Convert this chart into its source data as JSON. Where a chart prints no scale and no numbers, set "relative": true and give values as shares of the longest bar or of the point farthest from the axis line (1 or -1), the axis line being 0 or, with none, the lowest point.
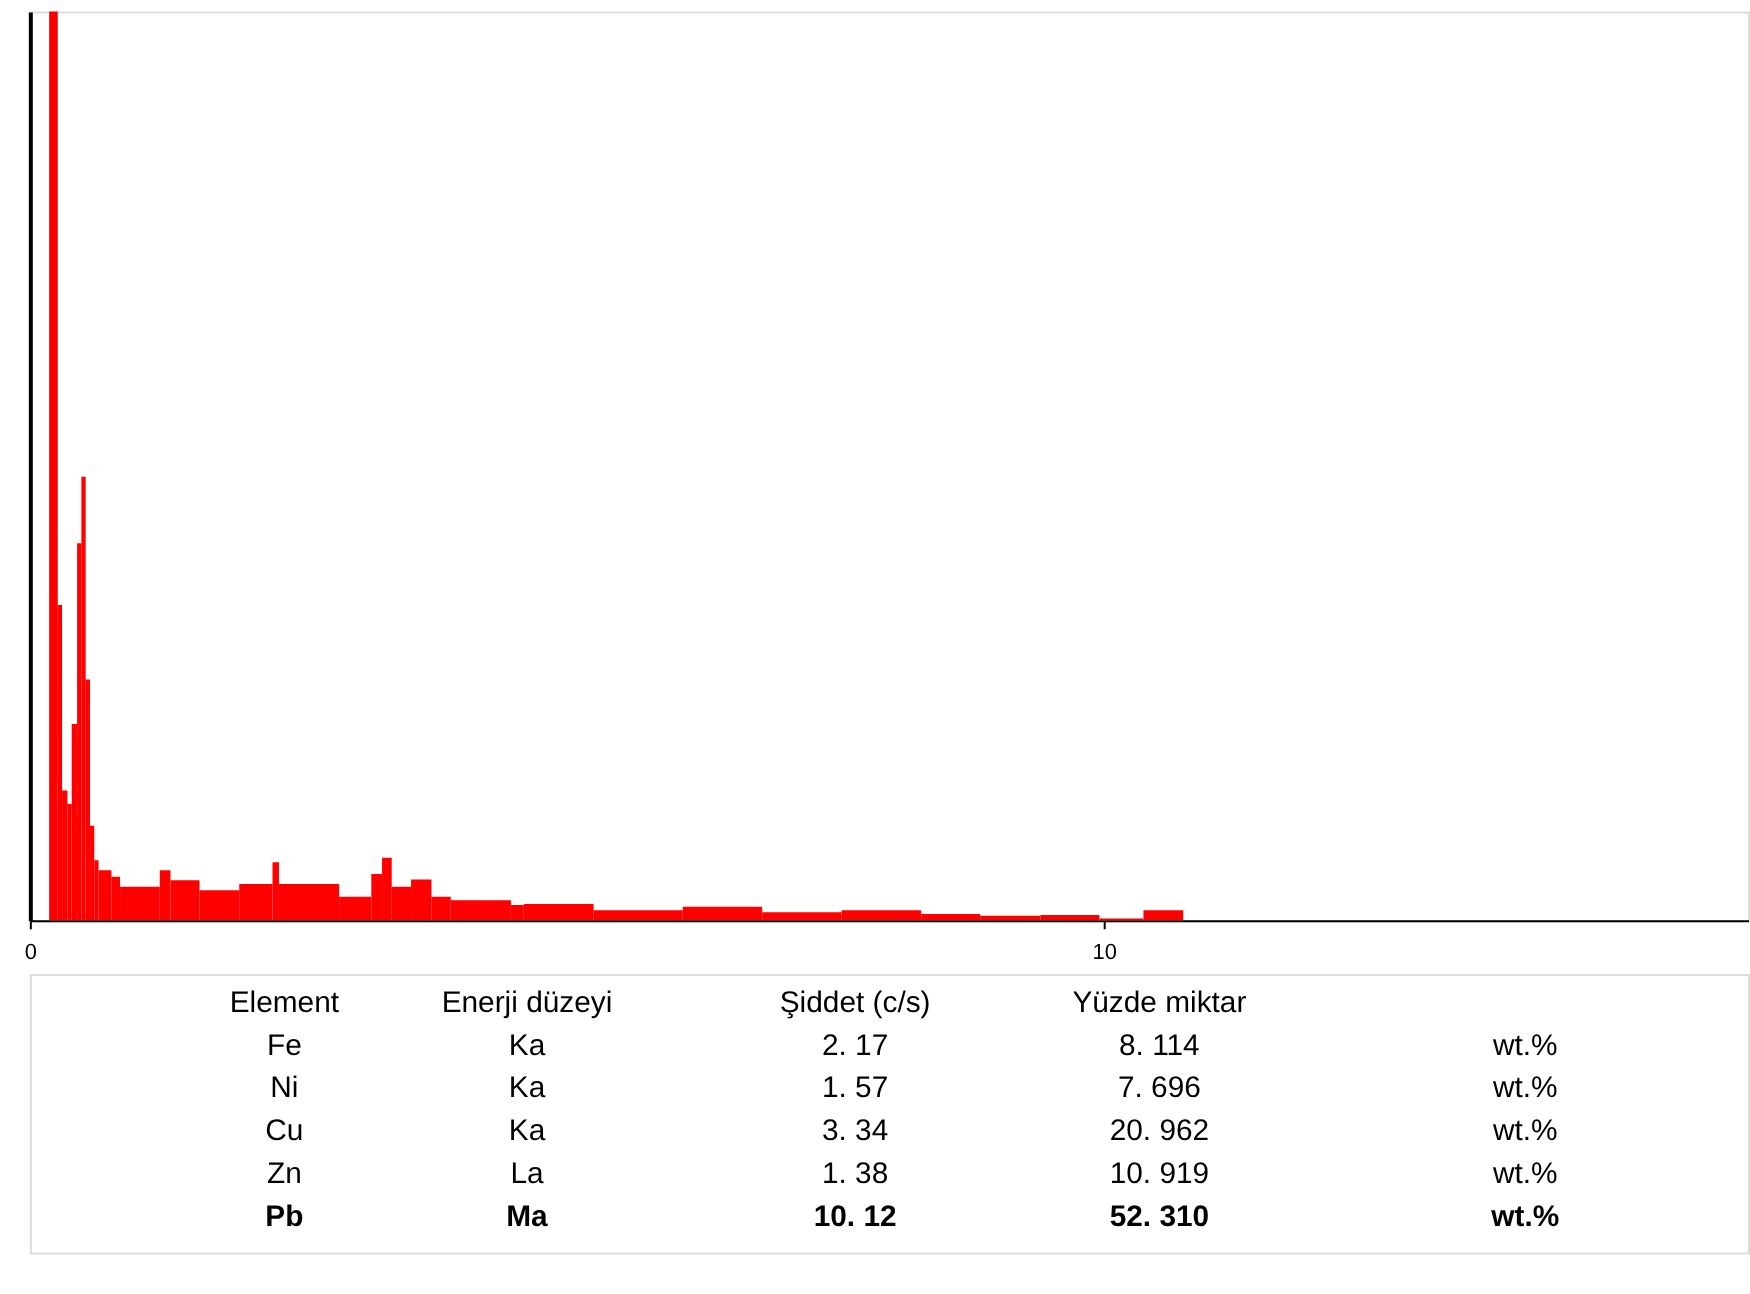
{
  "chart_data": {
    "type": "area",
    "relative": true,
    "xlim": [
      0,
      16
    ],
    "xticks": [
      0,
      10
    ],
    "tick_labels": "x",
    "grid": false,
    "series": [
      {
        "color": "#ff0000",
        "x": [
          0,
          0.18,
          0.26,
          0.3,
          0.35,
          0.39,
          0.44,
          0.48,
          0.52,
          0.56,
          0.6,
          0.64,
          0.76,
          0.84,
          1.21,
          1.31,
          1.58,
          1.95,
          2.26,
          2.32,
          2.88,
          3.18,
          3.28,
          3.37,
          3.55,
          3.74,
          3.92,
          4.48,
          4.6,
          5.25,
          6.08,
          6.82,
          7.56,
          8.3,
          8.85,
          9.41,
          9.96,
          10.37,
          10.74,
          16
        ],
        "values": [
          0,
          1.0,
          0.347,
          0.143,
          0.128,
          0.216,
          0.415,
          0.488,
          0.265,
          0.104,
          0.066,
          0.055,
          0.048,
          0.037,
          0.055,
          0.044,
          0.033,
          0.04,
          0.064,
          0.04,
          0.026,
          0.051,
          0.069,
          0.037,
          0.045,
          0.026,
          0.022,
          0.017,
          0.018,
          0.011,
          0.015,
          0.009,
          0.011,
          0.007,
          0.005,
          0.006,
          0.002,
          0.011,
          0,
          0
        ]
      }
    ],
    "annotations": [
      "Element",
      "Enerji düzeyi",
      "Şiddet (c/s)",
      "Yüzde miktar",
      "Fe",
      "Ka",
      "2. 17",
      "8. 114",
      "wt.%",
      "Ni",
      "Ka",
      "1. 57",
      "7. 696",
      "wt.%",
      "Cu",
      "Ka",
      "3. 34",
      "20. 962",
      "wt.%",
      "Zn",
      "La",
      "1. 38",
      "10. 919",
      "wt.%",
      "Pb",
      "Ma",
      "10. 12",
      "52. 310",
      "wt.%"
    ]
  }
}
